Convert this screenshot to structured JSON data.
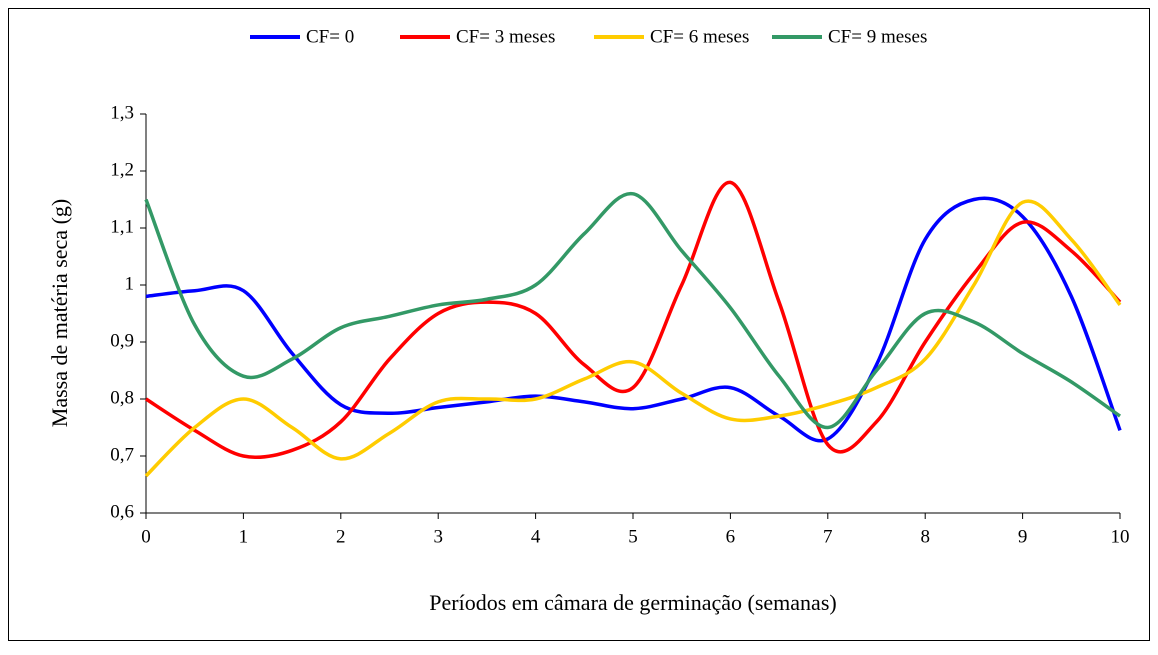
{
  "chart_data": {
    "type": "line",
    "x_label": "Períodos em câmara de germinação (semanas)",
    "y_label": "Massa de matéria seca (g)",
    "x": [
      0,
      0.5,
      1,
      1.5,
      2,
      2.5,
      3,
      3.5,
      4,
      4.5,
      5,
      5.5,
      6,
      6.5,
      7,
      7.5,
      8,
      8.5,
      9,
      9.5,
      10
    ],
    "series": [
      {
        "name": "CF= 0",
        "color": "#0000ff",
        "values": [
          0.98,
          0.99,
          0.99,
          0.88,
          0.79,
          0.775,
          0.785,
          0.795,
          0.805,
          0.795,
          0.783,
          0.8,
          0.82,
          0.77,
          0.73,
          0.86,
          1.08,
          1.15,
          1.12,
          0.98,
          0.745
        ]
      },
      {
        "name": "CF= 3 meses",
        "color": "#ff0000",
        "values": [
          0.8,
          0.745,
          0.7,
          0.71,
          0.76,
          0.87,
          0.95,
          0.97,
          0.95,
          0.86,
          0.82,
          1.0,
          1.18,
          0.97,
          0.72,
          0.76,
          0.9,
          1.02,
          1.11,
          1.06,
          0.97
        ]
      },
      {
        "name": "CF= 6 meses",
        "color": "#ffcc00",
        "values": [
          0.665,
          0.75,
          0.8,
          0.75,
          0.695,
          0.74,
          0.795,
          0.8,
          0.8,
          0.835,
          0.865,
          0.81,
          0.765,
          0.77,
          0.79,
          0.82,
          0.87,
          1.0,
          1.145,
          1.08,
          0.965
        ]
      },
      {
        "name": "CF= 9 meses",
        "color": "#339966",
        "values": [
          1.15,
          0.93,
          0.84,
          0.87,
          0.925,
          0.945,
          0.965,
          0.975,
          1.0,
          1.09,
          1.16,
          1.06,
          0.96,
          0.84,
          0.75,
          0.85,
          0.95,
          0.935,
          0.88,
          0.83,
          0.77
        ]
      }
    ],
    "xlim": [
      0,
      10
    ],
    "xticks": [
      0,
      1,
      2,
      3,
      4,
      5,
      6,
      7,
      8,
      9,
      10
    ],
    "ylim": [
      0.6,
      1.3
    ],
    "yticks": [
      {
        "value": 0.6,
        "label": "0,6"
      },
      {
        "value": 0.7,
        "label": "0,7"
      },
      {
        "value": 0.8,
        "label": "0,8"
      },
      {
        "value": 0.9,
        "label": "0,9"
      },
      1,
      {
        "value": 1.1,
        "label": "1,1"
      },
      {
        "value": 1.2,
        "label": "1,2"
      },
      {
        "value": 1.3,
        "label": "1,3"
      }
    ],
    "legend": "top",
    "smooth": true
  }
}
